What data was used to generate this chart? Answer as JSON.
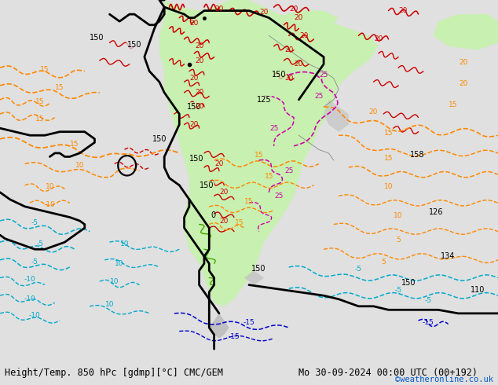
{
  "title_left": "Height/Temp. 850 hPc [gdmp][°C] CMC/GEM",
  "title_right": "Mo 30-09-2024 00:00 UTC (00+192)",
  "credit": "©weatheronline.co.uk",
  "bg_color": "#e0e0e0",
  "fig_width": 6.34,
  "fig_height": 4.9,
  "dpi": 100,
  "title_fontsize": 8.5,
  "credit_fontsize": 7.5,
  "credit_color": "#0055cc",
  "title_color": "#000000",
  "bottom_bar_color": "#ffffff",
  "land_green": "#c8f0b0",
  "land_gray": "#c0c0c0",
  "land_light": "#d8d8d8",
  "black": "#000000",
  "red": "#cc0000",
  "orange": "#ff8800",
  "magenta": "#cc00aa",
  "cyan": "#00aacc",
  "blue": "#0000cc",
  "green": "#44aa00",
  "gray_border": "#888888"
}
